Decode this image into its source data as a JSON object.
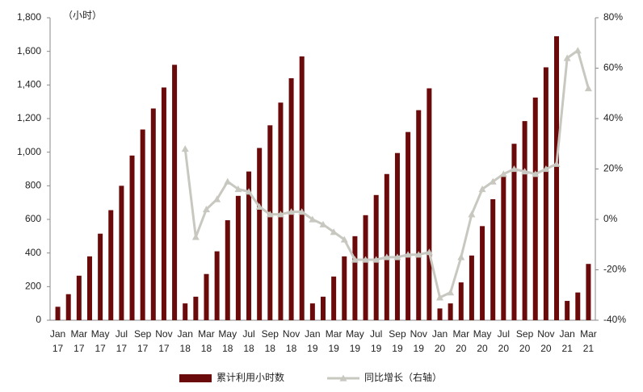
{
  "chart_data": {
    "type": "bar_line",
    "annotation": "（小时）",
    "categories": [
      "Jan 17",
      null,
      "Mar 17",
      null,
      "May 17",
      null,
      "Jul 17",
      null,
      "Sep 17",
      null,
      "Nov 17",
      null,
      "Jan 18",
      null,
      "Mar 18",
      null,
      "May 18",
      null,
      "Jul 18",
      null,
      "Sep 18",
      null,
      "Nov 18",
      null,
      "Jan 19",
      null,
      "Mar 19",
      null,
      "May 19",
      null,
      "Jul 19",
      null,
      "Sep 19",
      null,
      "Nov 19",
      null,
      "Jan 20",
      null,
      "Mar 20",
      null,
      "May 20",
      null,
      "Jul 20",
      null,
      "Sep 20",
      null,
      "Nov 20",
      null,
      "Jan 21",
      null,
      "Mar 21"
    ],
    "series": [
      {
        "name": "累计利用小时数",
        "color": "#6b0a0a",
        "axis": "y",
        "values": [
          80,
          155,
          265,
          380,
          515,
          655,
          800,
          980,
          1135,
          1260,
          1385,
          1520,
          100,
          140,
          275,
          410,
          595,
          740,
          885,
          1025,
          1160,
          1295,
          1440,
          1570,
          100,
          140,
          260,
          380,
          500,
          625,
          745,
          870,
          995,
          1120,
          1250,
          1380,
          70,
          100,
          225,
          385,
          560,
          720,
          860,
          1050,
          1185,
          1325,
          1505,
          1690,
          115,
          165,
          335
        ]
      },
      {
        "name": "同比增长（右轴）",
        "color": "#c8c8c0",
        "axis": "y2",
        "values": [
          null,
          null,
          null,
          null,
          null,
          null,
          null,
          null,
          null,
          null,
          null,
          null,
          28,
          -7,
          4,
          8,
          15,
          12,
          11,
          5,
          2,
          2,
          3,
          3,
          0,
          -2,
          -5,
          -8,
          -16,
          -16,
          -16,
          -15,
          -15,
          -14,
          -14,
          -13,
          -31,
          -29,
          -15,
          2,
          12,
          15,
          18,
          20,
          19,
          18,
          20,
          22,
          64,
          67,
          52
        ]
      }
    ],
    "ylim": [
      0,
      1800
    ],
    "yticks": [
      0,
      200,
      400,
      600,
      800,
      {
        "value": 1000,
        "label": "1,000"
      },
      {
        "value": 1200,
        "label": "1,200"
      },
      {
        "value": 1400,
        "label": "1,400"
      },
      {
        "value": 1600,
        "label": "1,600"
      },
      {
        "value": 1800,
        "label": "1,800"
      }
    ],
    "y2lim": [
      -40,
      80
    ],
    "y2ticks": [
      {
        "value": -40,
        "label": "-40%"
      },
      {
        "value": -20,
        "label": "-20%"
      },
      {
        "value": 0,
        "label": "0%"
      },
      {
        "value": 20,
        "label": "20%"
      },
      {
        "value": 40,
        "label": "40%"
      },
      {
        "value": 60,
        "label": "60%"
      },
      {
        "value": 80,
        "label": "80%"
      }
    ],
    "grid": false,
    "legend": "bottom"
  }
}
